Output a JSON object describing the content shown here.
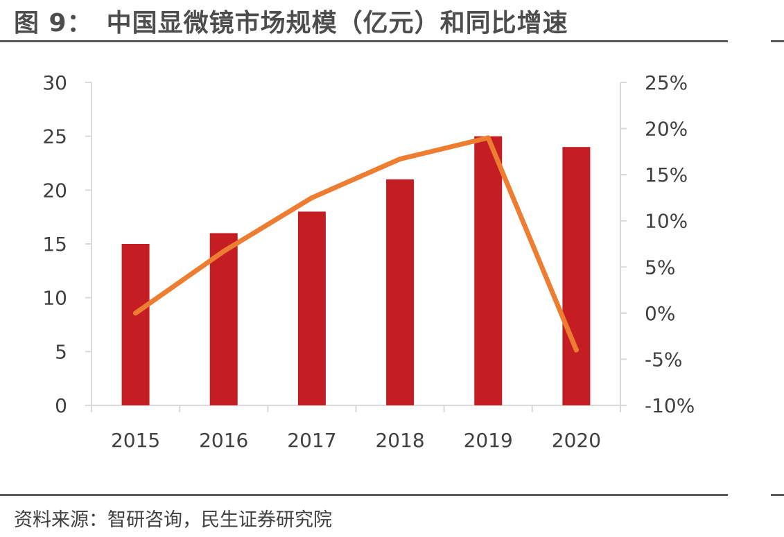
{
  "figure": {
    "label": "图 9：",
    "title": "中国显微镜市场规模（亿元）和同比增速",
    "source": "资料来源：智研咨询，民生证券研究院"
  },
  "colors": {
    "bar": "#c41e24",
    "line": "#ed7d31",
    "axis": "#d9d9d9",
    "text": "#404040"
  },
  "chart_data": {
    "type": "bar",
    "categories": [
      "2015",
      "2016",
      "2017",
      "2018",
      "2019",
      "2020"
    ],
    "series": [
      {
        "type": "bar",
        "axis": "left",
        "values": [
          15,
          16,
          18,
          21,
          25,
          24
        ]
      },
      {
        "type": "line",
        "axis": "right",
        "values": [
          0.0,
          6.7,
          12.5,
          16.7,
          19.0,
          -4.0
        ]
      }
    ],
    "ylim": [
      0,
      30
    ],
    "yticks": [
      0,
      5,
      10,
      15,
      20,
      25,
      30
    ],
    "y2lim": [
      -10,
      25
    ],
    "y2ticks": [
      "-10%",
      "-5%",
      "0%",
      "5%",
      "10%",
      "15%",
      "20%",
      "25%"
    ],
    "grid": false,
    "legend": "none"
  }
}
